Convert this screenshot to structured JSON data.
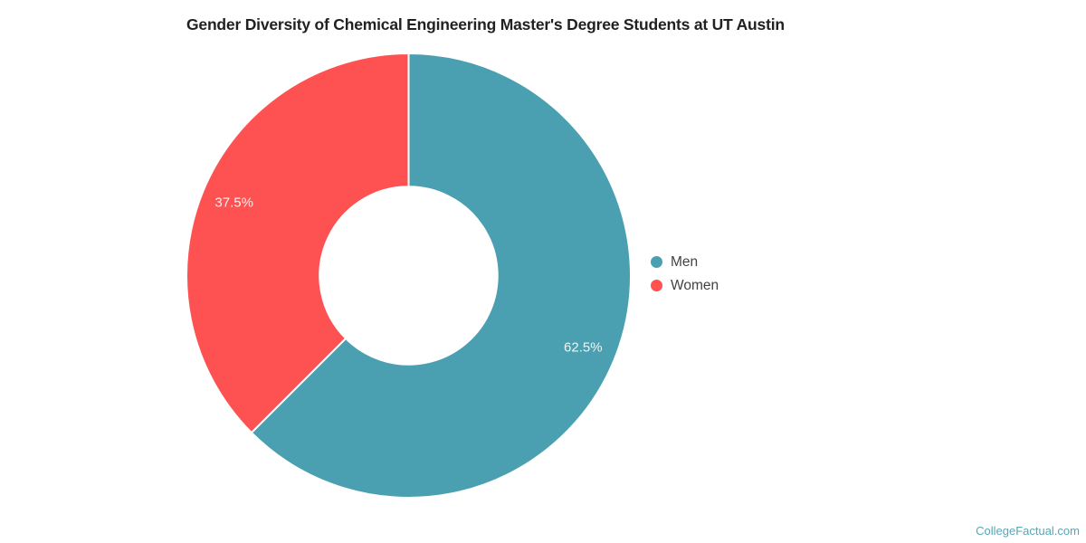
{
  "title": "Gender Diversity of Chemical Engineering Master's Degree Students at UT Austin",
  "watermark": "CollegeFactual.com",
  "colors": {
    "background": "#ffffff",
    "title_text": "#212121",
    "legend_text": "#424242",
    "slice_label_text": "#f2f2f2",
    "watermark_text": "#56a7b5",
    "slice_separator": "#ffffff",
    "men": "#4aa0b0",
    "women": "#fe5252"
  },
  "chart_data": {
    "type": "pie",
    "donut": true,
    "title": "Gender Diversity of Chemical Engineering Master's Degree Students at UT Austin",
    "start_angle_deg": 0,
    "inner_radius_ratio": 0.4,
    "label_radius_ratio": 0.85,
    "legend_position": "right",
    "grid": false,
    "slices": [
      {
        "name": "Men",
        "value": 62.5,
        "label": "62.5%",
        "color": "#4aa0b0"
      },
      {
        "name": "Women",
        "value": 37.5,
        "label": "37.5%",
        "color": "#fe5252"
      }
    ]
  }
}
